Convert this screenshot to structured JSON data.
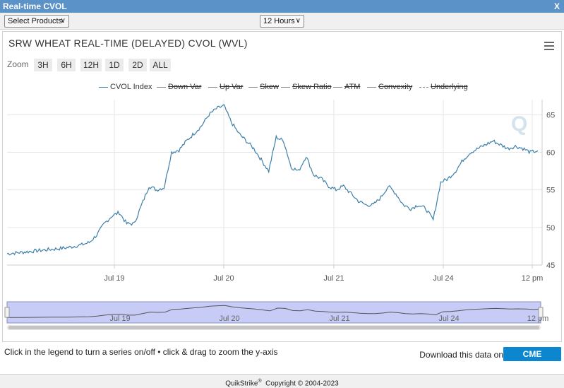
{
  "window": {
    "title": "Real-time CVOL",
    "close_label": "X"
  },
  "toolbar": {
    "products_select": "Select Products",
    "range_select": "12 Hours"
  },
  "chart": {
    "title": "SRW WHEAT REAL-TIME (DELAYED) CVOL (WVL)",
    "zoom_label": "Zoom",
    "zoom_buttons": [
      "3H",
      "6H",
      "12H",
      "1D",
      "2D",
      "ALL"
    ],
    "legend": [
      {
        "label": "CVOL Index",
        "enabled": true
      },
      {
        "label": "Down Var",
        "enabled": false
      },
      {
        "label": "Up Var",
        "enabled": false
      },
      {
        "label": "Skew",
        "enabled": false
      },
      {
        "label": "Skew Ratio",
        "enabled": false
      },
      {
        "label": "ATM",
        "enabled": false
      },
      {
        "label": "Convexity",
        "enabled": false
      },
      {
        "label": "Underlying",
        "enabled": false
      }
    ],
    "watermark": "Q"
  },
  "chart_data": {
    "type": "line",
    "title": "SRW WHEAT REAL-TIME (DELAYED) CVOL (WVL)",
    "xlabel": "",
    "ylabel": "",
    "ylim": [
      45,
      67
    ],
    "y_ticks": [
      45,
      50,
      55,
      60,
      65
    ],
    "x_ticks": [
      "Jul 19",
      "Jul 20",
      "Jul 21",
      "Jul 24",
      "12 pm"
    ],
    "grid": true,
    "legend_position": "top-center",
    "series": [
      {
        "name": "CVOL Index",
        "x_positions_label": "session-index",
        "values": [
          46.5,
          46.6,
          46.7,
          46.8,
          46.9,
          47.0,
          47.1,
          47.2,
          47.3,
          47.5,
          47.7,
          48.0,
          49.0,
          50.5,
          51.5,
          52.0,
          50.5,
          50.5,
          53.0,
          55.5,
          55.0,
          55.3,
          60.0,
          60.3,
          61.5,
          62.5,
          63.5,
          65.0,
          65.8,
          66.2,
          64.0,
          62.5,
          61.5,
          60.5,
          59.0,
          57.5,
          62.0,
          61.5,
          58.0,
          57.5,
          59.5,
          57.0,
          56.5,
          55.5,
          55.0,
          55.5,
          54.5,
          53.5,
          53.0,
          53.0,
          54.0,
          55.5,
          54.5,
          53.0,
          52.5,
          53.0,
          52.5,
          51.0,
          56.0,
          56.5,
          57.5,
          59.0,
          60.0,
          60.5,
          61.0,
          61.5,
          61.0,
          60.5,
          60.8,
          60.5,
          60.0,
          60.2
        ]
      }
    ]
  },
  "navigator": {
    "x_ticks": [
      "Jul 19",
      "Jul 20",
      "Jul 21",
      "Jul 24",
      "12 pm"
    ]
  },
  "footer": {
    "hint": "Click in the legend to turn a series on/off • click & drag to zoom the y-axis",
    "download_label": "Download this data on",
    "cme_button": "CME DataMine"
  },
  "bottom": {
    "brand": "QuikStrike",
    "reg": "®",
    "copyright": "Copyright © 2004-2023"
  },
  "colors": {
    "series": "#3d7fa8",
    "title_bar": "#5b92c7",
    "navigator_fill": "#c6ccf5",
    "cme_button": "#0d86d0"
  }
}
